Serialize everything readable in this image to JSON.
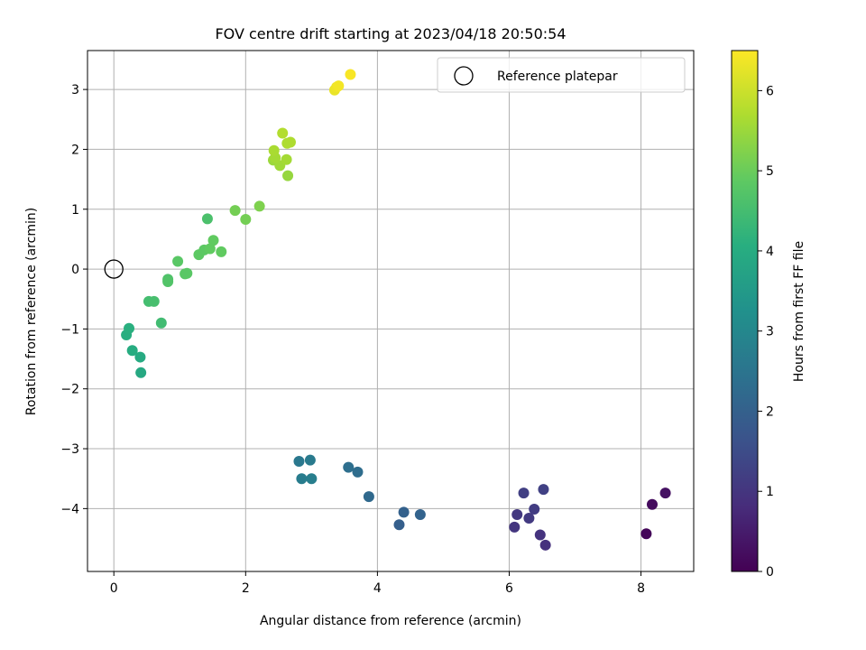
{
  "chart_data": {
    "type": "scatter",
    "title": "FOV centre drift starting at 2023/04/18 20:50:54",
    "xlabel": "Angular distance from reference (arcmin)",
    "ylabel": "Rotation from reference (arcmin)",
    "xlim": [
      -0.4,
      8.8
    ],
    "ylim": [
      -5.05,
      3.65
    ],
    "xticks": [
      0,
      2,
      4,
      6,
      8
    ],
    "yticks": [
      -4,
      -3,
      -2,
      -1,
      0,
      1,
      2,
      3
    ],
    "xtick_labels": [
      "0",
      "2",
      "4",
      "6",
      "8"
    ],
    "ytick_labels": [
      "−4",
      "−3",
      "−2",
      "−1",
      "0",
      "1",
      "2",
      "3"
    ],
    "grid": true,
    "legend": {
      "position": "top-right",
      "entries": [
        {
          "label": "Reference platepar",
          "marker": "open-circle"
        }
      ]
    },
    "reference_point": {
      "x": 0,
      "y": 0
    },
    "colorbar": {
      "label": "Hours from first FF file",
      "colormap": "viridis",
      "range": [
        0,
        6.5
      ],
      "ticks": [
        0,
        1,
        2,
        3,
        4,
        5,
        6
      ],
      "tick_labels": [
        "0",
        "1",
        "2",
        "3",
        "4",
        "5",
        "6"
      ]
    },
    "points": [
      {
        "x": 8.08,
        "y": -4.42,
        "c": 0.1
      },
      {
        "x": 8.17,
        "y": -3.93,
        "c": 0.2
      },
      {
        "x": 8.37,
        "y": -3.74,
        "c": 0.3
      },
      {
        "x": 6.55,
        "y": -4.61,
        "c": 0.9
      },
      {
        "x": 6.47,
        "y": -4.44,
        "c": 0.95
      },
      {
        "x": 6.08,
        "y": -4.31,
        "c": 1.0
      },
      {
        "x": 6.12,
        "y": -4.1,
        "c": 1.05
      },
      {
        "x": 6.3,
        "y": -4.16,
        "c": 1.1
      },
      {
        "x": 6.38,
        "y": -4.01,
        "c": 1.15
      },
      {
        "x": 6.22,
        "y": -3.74,
        "c": 1.2
      },
      {
        "x": 6.52,
        "y": -3.68,
        "c": 1.25
      },
      {
        "x": 4.33,
        "y": -4.27,
        "c": 1.95
      },
      {
        "x": 4.4,
        "y": -4.06,
        "c": 2.0
      },
      {
        "x": 4.65,
        "y": -4.1,
        "c": 2.05
      },
      {
        "x": 3.87,
        "y": -3.8,
        "c": 2.2
      },
      {
        "x": 3.7,
        "y": -3.39,
        "c": 2.3
      },
      {
        "x": 3.56,
        "y": -3.31,
        "c": 2.35
      },
      {
        "x": 2.81,
        "y": -3.21,
        "c": 2.6
      },
      {
        "x": 2.98,
        "y": -3.19,
        "c": 2.65
      },
      {
        "x": 2.85,
        "y": -3.5,
        "c": 2.7
      },
      {
        "x": 3.0,
        "y": -3.5,
        "c": 2.75
      },
      {
        "x": 0.41,
        "y": -1.73,
        "c": 3.9
      },
      {
        "x": 0.4,
        "y": -1.47,
        "c": 3.95
      },
      {
        "x": 0.28,
        "y": -1.36,
        "c": 4.0
      },
      {
        "x": 0.19,
        "y": -1.1,
        "c": 4.05
      },
      {
        "x": 0.23,
        "y": -0.99,
        "c": 4.1
      },
      {
        "x": 0.72,
        "y": -0.9,
        "c": 4.45
      },
      {
        "x": 0.53,
        "y": -0.54,
        "c": 4.5
      },
      {
        "x": 0.61,
        "y": -0.54,
        "c": 4.55
      },
      {
        "x": 0.82,
        "y": -0.17,
        "c": 4.65
      },
      {
        "x": 0.82,
        "y": -0.21,
        "c": 4.7
      },
      {
        "x": 1.08,
        "y": -0.08,
        "c": 4.8
      },
      {
        "x": 1.11,
        "y": -0.07,
        "c": 4.8
      },
      {
        "x": 0.97,
        "y": 0.13,
        "c": 4.8
      },
      {
        "x": 1.29,
        "y": 0.24,
        "c": 4.85
      },
      {
        "x": 1.37,
        "y": 0.32,
        "c": 4.85
      },
      {
        "x": 1.46,
        "y": 0.34,
        "c": 4.9
      },
      {
        "x": 1.63,
        "y": 0.29,
        "c": 4.9
      },
      {
        "x": 1.51,
        "y": 0.48,
        "c": 4.9
      },
      {
        "x": 1.42,
        "y": 0.84,
        "c": 4.6
      },
      {
        "x": 2.0,
        "y": 0.83,
        "c": 5.1
      },
      {
        "x": 1.84,
        "y": 0.98,
        "c": 5.1
      },
      {
        "x": 2.21,
        "y": 1.05,
        "c": 5.2
      },
      {
        "x": 2.64,
        "y": 1.56,
        "c": 5.45
      },
      {
        "x": 2.42,
        "y": 1.82,
        "c": 5.5
      },
      {
        "x": 2.52,
        "y": 1.73,
        "c": 5.55
      },
      {
        "x": 2.62,
        "y": 1.83,
        "c": 5.6
      },
      {
        "x": 2.45,
        "y": 1.86,
        "c": 5.6
      },
      {
        "x": 2.43,
        "y": 1.98,
        "c": 5.65
      },
      {
        "x": 2.63,
        "y": 2.1,
        "c": 5.7
      },
      {
        "x": 2.68,
        "y": 2.12,
        "c": 5.7
      },
      {
        "x": 2.56,
        "y": 2.27,
        "c": 5.75
      },
      {
        "x": 3.35,
        "y": 2.99,
        "c": 6.3
      },
      {
        "x": 3.38,
        "y": 3.04,
        "c": 6.35
      },
      {
        "x": 3.41,
        "y": 3.06,
        "c": 6.4
      },
      {
        "x": 3.59,
        "y": 3.25,
        "c": 6.45
      }
    ]
  }
}
